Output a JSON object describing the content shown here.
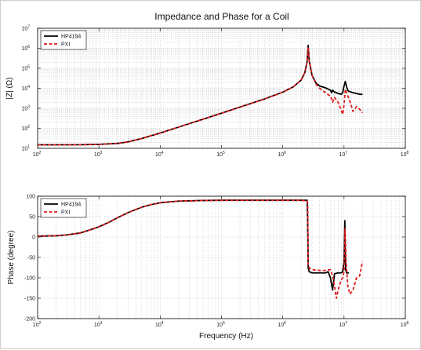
{
  "title": "Impedance and Phase for a Coil",
  "chart_data": [
    {
      "type": "line",
      "name": "impedance",
      "title": "Impedance and Phase for a Coil",
      "xlabel": "",
      "ylabel": "|Z| (Ω)",
      "xscale": "log",
      "yscale": "log",
      "xlim": [
        100,
        100000000
      ],
      "ylim": [
        10,
        10000000
      ],
      "grid": true,
      "legend": "top-left",
      "x_ticks": [
        "10",
        "10",
        "10",
        "10",
        "10",
        "10",
        "10"
      ],
      "x_tick_exp": [
        "2",
        "3",
        "4",
        "5",
        "6",
        "7",
        "8"
      ],
      "y_ticks": [
        "10",
        "10",
        "10",
        "10",
        "10",
        "10",
        "10"
      ],
      "y_tick_exp": [
        "1",
        "2",
        "3",
        "4",
        "5",
        "6",
        "7"
      ],
      "series": [
        {
          "name": "HP4194",
          "color": "#000000",
          "style": "solid",
          "x": [
            100,
            200,
            500,
            1000,
            2000,
            3000,
            5000,
            10000,
            20000,
            50000,
            100000,
            200000,
            500000,
            1000000,
            1500000,
            2000000,
            2300000,
            2500000,
            2600000,
            2700000,
            3000000,
            3500000,
            4000000,
            5000000,
            6000000,
            6300000,
            6500000,
            7000000,
            8000000,
            9000000,
            9500000,
            10000000,
            10500000,
            11000000,
            11500000,
            12000000,
            14000000,
            16000000,
            18000000,
            20000000
          ],
          "y": [
            15,
            15,
            15.2,
            15.8,
            17.5,
            21,
            31,
            58,
            115,
            285,
            570,
            1150,
            2900,
            6400,
            12000,
            26000,
            62000,
            220000,
            1400000,
            240000,
            45000,
            18000,
            13000,
            10500,
            8000,
            6000,
            8000,
            6500,
            5500,
            5000,
            6000,
            13000,
            22000,
            12000,
            8000,
            7000,
            6000,
            5500,
            5000,
            5000
          ]
        },
        {
          "name": "PXI",
          "color": "#e01b1b",
          "style": "dashed",
          "x": [
            100,
            200,
            500,
            1000,
            2000,
            3000,
            5000,
            10000,
            20000,
            50000,
            100000,
            200000,
            500000,
            1000000,
            1500000,
            2000000,
            2300000,
            2500000,
            2600000,
            2700000,
            3000000,
            3500000,
            4000000,
            5000000,
            6000000,
            6300000,
            6500000,
            7000000,
            8000000,
            9000000,
            9500000,
            10000000,
            10500000,
            11000000,
            12000000,
            13000000,
            14000000,
            16000000,
            18000000,
            20000000
          ],
          "y": [
            15,
            15,
            15.2,
            15.8,
            17.5,
            21,
            31,
            58,
            115,
            285,
            570,
            1150,
            2900,
            6400,
            12000,
            26000,
            62000,
            220000,
            1100000,
            240000,
            45000,
            16000,
            10000,
            6000,
            4000,
            3000,
            2000,
            3500,
            2000,
            800,
            500,
            1500,
            9000,
            6000,
            3000,
            1500,
            700,
            1200,
            900,
            600
          ]
        }
      ]
    },
    {
      "type": "line",
      "name": "phase",
      "title": "",
      "xlabel": "Frequency (Hz)",
      "ylabel": "Phase (degree)",
      "xscale": "log",
      "yscale": "linear",
      "xlim": [
        100,
        100000000
      ],
      "ylim": [
        -200,
        100
      ],
      "grid": true,
      "legend": "top-left",
      "x_ticks": [
        "10",
        "10",
        "10",
        "10",
        "10",
        "10",
        "10"
      ],
      "x_tick_exp": [
        "2",
        "3",
        "4",
        "5",
        "6",
        "7",
        "8"
      ],
      "y_ticks": [
        "100",
        "50",
        "0",
        "-50",
        "-100",
        "-150",
        "-200"
      ],
      "y_tick_values": [
        100,
        50,
        0,
        -50,
        -100,
        -150,
        -200
      ],
      "series": [
        {
          "name": "HP4194",
          "color": "#000000",
          "style": "solid",
          "x": [
            100,
            200,
            300,
            500,
            700,
            1000,
            1500,
            2000,
            3000,
            5000,
            7000,
            10000,
            20000,
            50000,
            100000,
            500000,
            1000000,
            2000000,
            2500000,
            2550000,
            2600000,
            2700000,
            3000000,
            4000000,
            5000000,
            5500000,
            6000000,
            6500000,
            7000000,
            8000000,
            9000000,
            9500000,
            10000000,
            10300000,
            10600000,
            11000000,
            11500000,
            12000000
          ],
          "y": [
            2,
            3,
            5,
            10,
            17,
            25,
            37,
            47,
            60,
            73,
            79,
            84,
            88,
            89.5,
            90,
            90,
            90,
            90,
            90,
            40,
            -75,
            -85,
            -88,
            -88,
            -88,
            -85,
            -100,
            -130,
            -90,
            -88,
            -88,
            -85,
            -60,
            40,
            -80,
            -88,
            -88,
            -88
          ]
        },
        {
          "name": "PXI",
          "color": "#e01b1b",
          "style": "dashed",
          "x": [
            100,
            200,
            300,
            500,
            700,
            1000,
            1500,
            2000,
            3000,
            5000,
            7000,
            10000,
            20000,
            50000,
            100000,
            500000,
            1000000,
            2000000,
            2500000,
            2550000,
            2600000,
            2800000,
            3000000,
            4000000,
            5000000,
            6000000,
            6500000,
            7000000,
            7500000,
            8000000,
            9000000,
            9500000,
            10000000,
            10400000,
            10800000,
            11500000,
            12500000,
            14000000,
            16000000,
            18000000,
            20000000
          ],
          "y": [
            2,
            3,
            5,
            10,
            17,
            25,
            37,
            47,
            60,
            73,
            79,
            84,
            88,
            89.5,
            90,
            90,
            90,
            90,
            88,
            80,
            -70,
            -78,
            -80,
            -82,
            -82,
            -80,
            -95,
            -120,
            -150,
            -130,
            -105,
            -100,
            -85,
            20,
            -60,
            -120,
            -140,
            -130,
            -100,
            -95,
            -60
          ]
        }
      ]
    }
  ]
}
